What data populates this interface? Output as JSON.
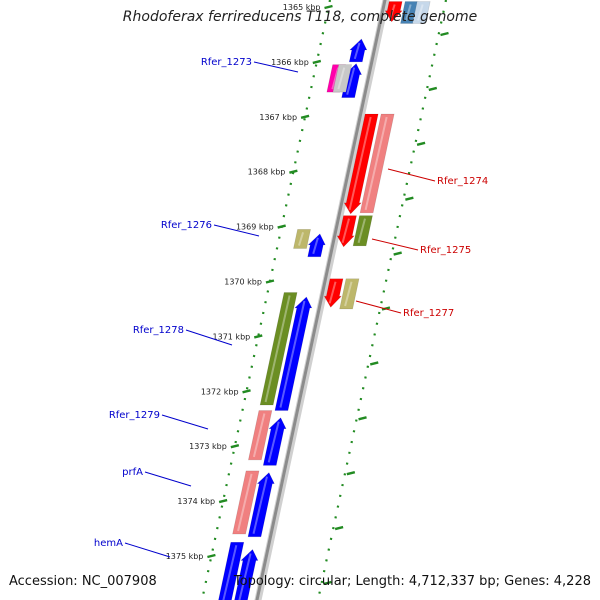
{
  "title": "Rhodoferax ferrireducens T118, complete genome",
  "accession": "Accession: NC_007908",
  "topology": "Topology: circular; Length: 4,712,337 bp; Genes: 4,228",
  "colors": {
    "backbone": "#8c8c8c",
    "tick": "#228b22",
    "label_forward": "#0000cc",
    "label_reverse": "#cc0000",
    "blue": "#0000ff",
    "red": "#ff0000",
    "pink": "#f08080",
    "olive": "#6b8e23",
    "khaki": "#bdb76b",
    "magenta": "#ff00aa",
    "lightgray": "#c8c8c8",
    "steelblue": "#4682b4",
    "lightsteel": "#c6d8ea"
  },
  "ruler": [
    {
      "label": "1365 kbp",
      "kbp": 1365
    },
    {
      "label": "1366 kbp",
      "kbp": 1366
    },
    {
      "label": "1367 kbp",
      "kbp": 1367
    },
    {
      "label": "1368 kbp",
      "kbp": 1368
    },
    {
      "label": "1369 kbp",
      "kbp": 1369
    },
    {
      "label": "1370 kbp",
      "kbp": 1370
    },
    {
      "label": "1371 kbp",
      "kbp": 1371
    },
    {
      "label": "1372 kbp",
      "kbp": 1372
    },
    {
      "label": "1373 kbp",
      "kbp": 1373
    },
    {
      "label": "1374 kbp",
      "kbp": 1374
    },
    {
      "label": "1375 kbp",
      "kbp": 1375
    }
  ],
  "labels": [
    {
      "text": "Rfer_1273",
      "side": "left",
      "strand": "forward"
    },
    {
      "text": "Rfer_1274",
      "side": "right",
      "strand": "reverse"
    },
    {
      "text": "Rfer_1275",
      "side": "right",
      "strand": "reverse"
    },
    {
      "text": "Rfer_1276",
      "side": "left",
      "strand": "forward"
    },
    {
      "text": "Rfer_1277",
      "side": "right",
      "strand": "reverse"
    },
    {
      "text": "Rfer_1278",
      "side": "left",
      "strand": "forward"
    },
    {
      "text": "Rfer_1279",
      "side": "left",
      "strand": "forward"
    },
    {
      "text": "prfA",
      "side": "left",
      "strand": "forward"
    },
    {
      "text": "hemA",
      "side": "left",
      "strand": "forward"
    }
  ],
  "features": [
    {
      "strand": "reverse",
      "track": "outer",
      "dir": "left",
      "color": "red",
      "start": 1364.9,
      "end": 1365.25
    },
    {
      "strand": "reverse",
      "track": "inner",
      "dir": "none",
      "color": "steelblue",
      "start": 1364.9,
      "end": 1365.3
    },
    {
      "strand": "reverse",
      "track": "inner2",
      "dir": "none",
      "color": "lightsteel",
      "start": 1364.9,
      "end": 1365.3
    },
    {
      "strand": "forward",
      "track": "inner",
      "dir": "right",
      "color": "blue",
      "start": 1365.6,
      "end": 1366.0
    },
    {
      "strand": "forward",
      "track": "inner",
      "dir": "right",
      "color": "blue",
      "start": 1366.05,
      "end": 1366.65
    },
    {
      "strand": "forward",
      "track": "outer",
      "dir": "none",
      "color": "magenta",
      "start": 1366.05,
      "end": 1366.55
    },
    {
      "strand": "forward",
      "track": "outer2",
      "dir": "none",
      "color": "lightgray",
      "start": 1366.05,
      "end": 1366.55
    },
    {
      "strand": "reverse",
      "track": "outer",
      "dir": "left",
      "color": "red",
      "start": 1366.95,
      "end": 1368.75
    },
    {
      "strand": "reverse",
      "track": "inner",
      "dir": "none",
      "color": "pink",
      "start": 1366.95,
      "end": 1368.75
    },
    {
      "strand": "reverse",
      "track": "outer",
      "dir": "left",
      "color": "red",
      "start": 1368.8,
      "end": 1369.35
    },
    {
      "strand": "reverse",
      "track": "inner",
      "dir": "none",
      "color": "olive",
      "start": 1368.8,
      "end": 1369.35
    },
    {
      "strand": "forward",
      "track": "outer",
      "dir": "none",
      "color": "khaki",
      "start": 1369.05,
      "end": 1369.4
    },
    {
      "strand": "forward",
      "track": "inner",
      "dir": "right",
      "color": "blue",
      "start": 1369.15,
      "end": 1369.55
    },
    {
      "strand": "reverse",
      "track": "outer",
      "dir": "left",
      "color": "red",
      "start": 1369.95,
      "end": 1370.45
    },
    {
      "strand": "reverse",
      "track": "inner",
      "dir": "none",
      "color": "khaki",
      "start": 1369.95,
      "end": 1370.5
    },
    {
      "strand": "forward",
      "track": "outer",
      "dir": "none",
      "color": "olive",
      "start": 1370.2,
      "end": 1372.25
    },
    {
      "strand": "forward",
      "track": "inner",
      "dir": "right",
      "color": "blue",
      "start": 1370.3,
      "end": 1372.35
    },
    {
      "strand": "forward",
      "track": "outer",
      "dir": "none",
      "color": "pink",
      "start": 1372.35,
      "end": 1373.25
    },
    {
      "strand": "forward",
      "track": "inner",
      "dir": "right",
      "color": "blue",
      "start": 1372.5,
      "end": 1373.35
    },
    {
      "strand": "forward",
      "track": "outer",
      "dir": "none",
      "color": "pink",
      "start": 1373.45,
      "end": 1374.6
    },
    {
      "strand": "forward",
      "track": "inner",
      "dir": "right",
      "color": "blue",
      "start": 1373.5,
      "end": 1374.65
    },
    {
      "strand": "forward",
      "track": "outer",
      "dir": "none",
      "color": "blue",
      "start": 1374.75,
      "end": 1375.9
    },
    {
      "strand": "forward",
      "track": "inner",
      "dir": "right",
      "color": "blue",
      "start": 1374.9,
      "end": 1375.9
    }
  ]
}
